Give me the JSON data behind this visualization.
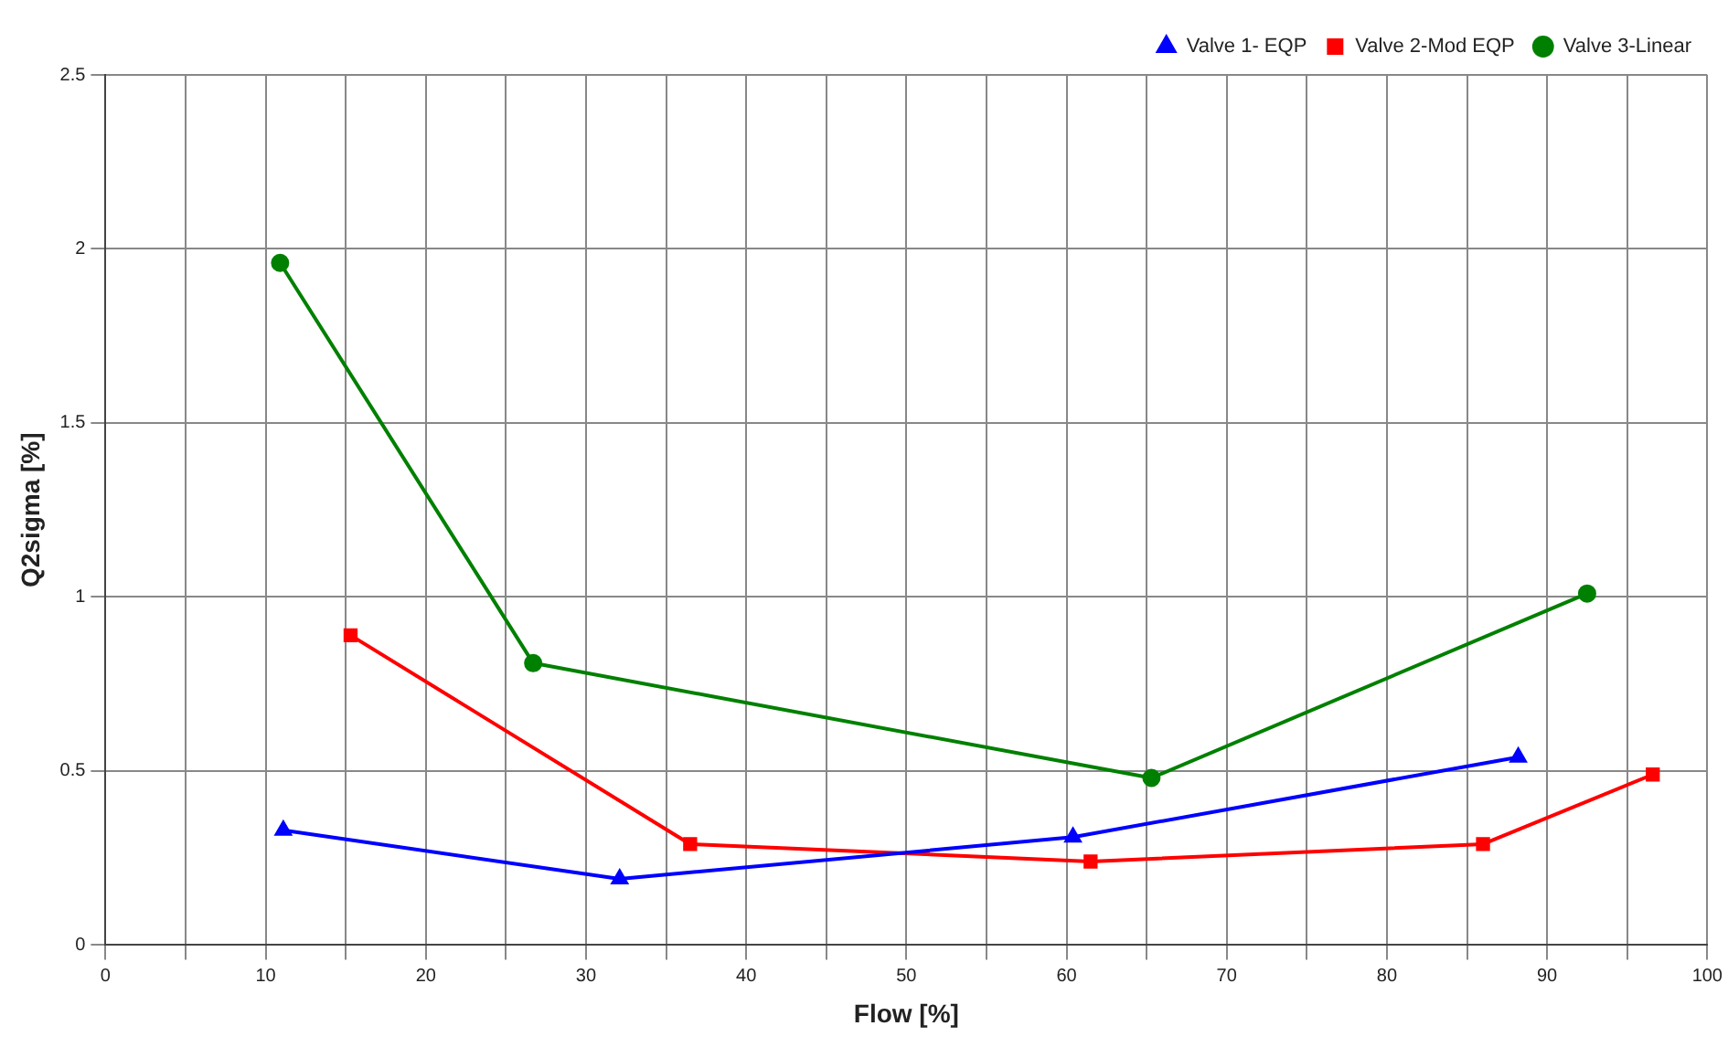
{
  "chart_data": {
    "type": "line",
    "xlabel": "Flow [%]",
    "ylabel": "Q2sigma [%]",
    "xlim": [
      0,
      100
    ],
    "ylim": [
      0,
      2.5
    ],
    "xticks": [
      0,
      {
        "value": 5,
        "label": null
      },
      10,
      {
        "value": 15,
        "label": null
      },
      20,
      {
        "value": 25,
        "label": null
      },
      30,
      {
        "value": 35,
        "label": null
      },
      40,
      {
        "value": 45,
        "label": null
      },
      50,
      {
        "value": 55,
        "label": null
      },
      60,
      {
        "value": 65,
        "label": null
      },
      70,
      {
        "value": 75,
        "label": null
      },
      80,
      {
        "value": 85,
        "label": null
      },
      90,
      {
        "value": 95,
        "label": null
      },
      100
    ],
    "yticks": [
      0,
      0.5,
      1,
      1.5,
      2,
      2.5
    ],
    "grid": true,
    "legend": "top right",
    "series": [
      {
        "name": "Valve 1- EQP",
        "color": "#0000ff",
        "marker": "triangle",
        "x": [
          11.1,
          32.1,
          60.4,
          88.2
        ],
        "values": [
          0.33,
          0.19,
          0.31,
          0.54
        ]
      },
      {
        "name": "Valve 2-Mod EQP",
        "color": "#ff0000",
        "marker": "square",
        "x": [
          15.3,
          36.5,
          61.5,
          86.0,
          96.6
        ],
        "values": [
          0.89,
          0.29,
          0.24,
          0.29,
          0.49
        ]
      },
      {
        "name": "Valve 3-Linear",
        "color": "#008000",
        "marker": "circle",
        "x": [
          10.9,
          26.7,
          65.3,
          92.5
        ],
        "values": [
          1.96,
          0.81,
          0.48,
          1.01
        ]
      }
    ]
  }
}
